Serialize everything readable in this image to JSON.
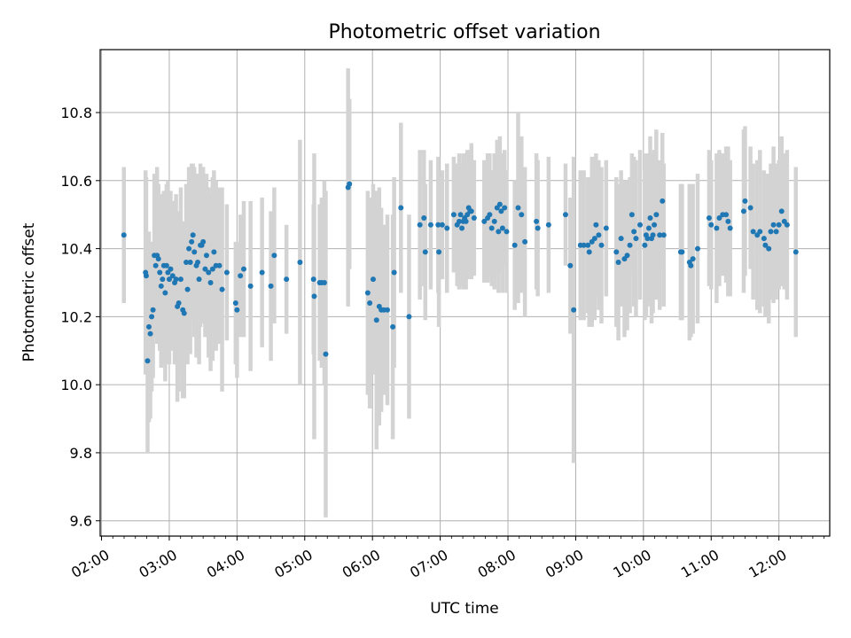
{
  "chart_data": {
    "type": "scatter",
    "title": "Photometric offset variation",
    "xlabel": "UTC time",
    "ylabel": "Photometric offset",
    "x_unit": "hours UTC",
    "xlim": [
      1.98,
      12.75
    ],
    "ylim": [
      9.555,
      10.985
    ],
    "xticks": [
      "02:00",
      "03:00",
      "04:00",
      "05:00",
      "06:00",
      "07:00",
      "08:00",
      "09:00",
      "10:00",
      "11:00",
      "12:00"
    ],
    "xtick_values": [
      2,
      3,
      4,
      5,
      6,
      7,
      8,
      9,
      10,
      11,
      12
    ],
    "yticks": [
      "9.6",
      "9.8",
      "10.0",
      "10.2",
      "10.4",
      "10.6",
      "10.8"
    ],
    "ytick_values": [
      9.6,
      9.8,
      10.0,
      10.2,
      10.4,
      10.6,
      10.8
    ],
    "grid": true,
    "point_color": "#1f77b4",
    "errorbar_color": "#d3d3d3",
    "points": [
      {
        "x": 2.33,
        "y": 10.44,
        "e": 0.2
      },
      {
        "x": 2.65,
        "y": 10.33,
        "e": 0.3
      },
      {
        "x": 2.66,
        "y": 10.32,
        "e": 0.29
      },
      {
        "x": 2.68,
        "y": 10.07,
        "e": 0.27
      },
      {
        "x": 2.7,
        "y": 10.17,
        "e": 0.28
      },
      {
        "x": 2.72,
        "y": 10.15,
        "e": 0.25
      },
      {
        "x": 2.74,
        "y": 10.2,
        "e": 0.22
      },
      {
        "x": 2.76,
        "y": 10.22,
        "e": 0.2
      },
      {
        "x": 2.78,
        "y": 10.38,
        "e": 0.24
      },
      {
        "x": 2.8,
        "y": 10.35,
        "e": 0.21
      },
      {
        "x": 2.82,
        "y": 10.38,
        "e": 0.26
      },
      {
        "x": 2.84,
        "y": 10.37,
        "e": 0.22
      },
      {
        "x": 2.86,
        "y": 10.33,
        "e": 0.23
      },
      {
        "x": 2.88,
        "y": 10.29,
        "e": 0.24
      },
      {
        "x": 2.9,
        "y": 10.31,
        "e": 0.25
      },
      {
        "x": 2.92,
        "y": 10.35,
        "e": 0.22
      },
      {
        "x": 2.94,
        "y": 10.27,
        "e": 0.26
      },
      {
        "x": 2.96,
        "y": 10.35,
        "e": 0.24
      },
      {
        "x": 2.98,
        "y": 10.33,
        "e": 0.27
      },
      {
        "x": 3.0,
        "y": 10.31,
        "e": 0.25
      },
      {
        "x": 3.02,
        "y": 10.34,
        "e": 0.23
      },
      {
        "x": 3.05,
        "y": 10.32,
        "e": 0.22
      },
      {
        "x": 3.08,
        "y": 10.3,
        "e": 0.24
      },
      {
        "x": 3.1,
        "y": 10.31,
        "e": 0.25
      },
      {
        "x": 3.12,
        "y": 10.23,
        "e": 0.28
      },
      {
        "x": 3.14,
        "y": 10.24,
        "e": 0.26
      },
      {
        "x": 3.17,
        "y": 10.31,
        "e": 0.27
      },
      {
        "x": 3.2,
        "y": 10.22,
        "e": 0.26
      },
      {
        "x": 3.22,
        "y": 10.21,
        "e": 0.25
      },
      {
        "x": 3.25,
        "y": 10.36,
        "e": 0.23
      },
      {
        "x": 3.27,
        "y": 10.28,
        "e": 0.22
      },
      {
        "x": 3.29,
        "y": 10.4,
        "e": 0.24
      },
      {
        "x": 3.31,
        "y": 10.36,
        "e": 0.27
      },
      {
        "x": 3.33,
        "y": 10.42,
        "e": 0.23
      },
      {
        "x": 3.35,
        "y": 10.44,
        "e": 0.21
      },
      {
        "x": 3.37,
        "y": 10.39,
        "e": 0.25
      },
      {
        "x": 3.4,
        "y": 10.35,
        "e": 0.27
      },
      {
        "x": 3.42,
        "y": 10.36,
        "e": 0.26
      },
      {
        "x": 3.44,
        "y": 10.31,
        "e": 0.25
      },
      {
        "x": 3.46,
        "y": 10.41,
        "e": 0.24
      },
      {
        "x": 3.48,
        "y": 10.41,
        "e": 0.23
      },
      {
        "x": 3.5,
        "y": 10.42,
        "e": 0.22
      },
      {
        "x": 3.53,
        "y": 10.34,
        "e": 0.2
      },
      {
        "x": 3.55,
        "y": 10.38,
        "e": 0.24
      },
      {
        "x": 3.58,
        "y": 10.33,
        "e": 0.25
      },
      {
        "x": 3.61,
        "y": 10.3,
        "e": 0.26
      },
      {
        "x": 3.64,
        "y": 10.34,
        "e": 0.27
      },
      {
        "x": 3.66,
        "y": 10.39,
        "e": 0.24
      },
      {
        "x": 3.69,
        "y": 10.35,
        "e": 0.25
      },
      {
        "x": 3.74,
        "y": 10.35,
        "e": 0.23
      },
      {
        "x": 3.78,
        "y": 10.28,
        "e": 0.3
      },
      {
        "x": 3.85,
        "y": 10.33,
        "e": 0.2
      },
      {
        "x": 3.98,
        "y": 10.24,
        "e": 0.18
      },
      {
        "x": 4.0,
        "y": 10.22,
        "e": 0.2
      },
      {
        "x": 4.05,
        "y": 10.32,
        "e": 0.18
      },
      {
        "x": 4.1,
        "y": 10.34,
        "e": 0.2
      },
      {
        "x": 4.2,
        "y": 10.29,
        "e": 0.25
      },
      {
        "x": 4.37,
        "y": 10.33,
        "e": 0.22
      },
      {
        "x": 4.5,
        "y": 10.29,
        "e": 0.22
      },
      {
        "x": 4.55,
        "y": 10.38,
        "e": 0.2
      },
      {
        "x": 4.73,
        "y": 10.31,
        "e": 0.16
      },
      {
        "x": 4.93,
        "y": 10.36,
        "e": 0.36
      },
      {
        "x": 5.13,
        "y": 10.31,
        "e": 0.22
      },
      {
        "x": 5.14,
        "y": 10.26,
        "e": 0.42
      },
      {
        "x": 5.22,
        "y": 10.3,
        "e": 0.23
      },
      {
        "x": 5.25,
        "y": 10.3,
        "e": 0.25
      },
      {
        "x": 5.29,
        "y": 10.3,
        "e": 0.3
      },
      {
        "x": 5.31,
        "y": 10.09,
        "e": 0.48
      },
      {
        "x": 5.64,
        "y": 10.58,
        "e": 0.35
      },
      {
        "x": 5.66,
        "y": 10.59,
        "e": 0.25
      },
      {
        "x": 5.93,
        "y": 10.27,
        "e": 0.3
      },
      {
        "x": 5.96,
        "y": 10.24,
        "e": 0.31
      },
      {
        "x": 6.01,
        "y": 10.31,
        "e": 0.28
      },
      {
        "x": 6.06,
        "y": 10.19,
        "e": 0.38
      },
      {
        "x": 6.1,
        "y": 10.23,
        "e": 0.35
      },
      {
        "x": 6.13,
        "y": 10.22,
        "e": 0.3
      },
      {
        "x": 6.17,
        "y": 10.22,
        "e": 0.25
      },
      {
        "x": 6.22,
        "y": 10.22,
        "e": 0.28
      },
      {
        "x": 6.3,
        "y": 10.17,
        "e": 0.33
      },
      {
        "x": 6.32,
        "y": 10.33,
        "e": 0.28
      },
      {
        "x": 6.42,
        "y": 10.52,
        "e": 0.25
      },
      {
        "x": 6.54,
        "y": 10.2,
        "e": 0.3
      },
      {
        "x": 6.7,
        "y": 10.47,
        "e": 0.22
      },
      {
        "x": 6.76,
        "y": 10.49,
        "e": 0.2
      },
      {
        "x": 6.78,
        "y": 10.39,
        "e": 0.2
      },
      {
        "x": 6.86,
        "y": 10.47,
        "e": 0.19
      },
      {
        "x": 6.97,
        "y": 10.47,
        "e": 0.2
      },
      {
        "x": 6.98,
        "y": 10.39,
        "e": 0.22
      },
      {
        "x": 7.03,
        "y": 10.47,
        "e": 0.16
      },
      {
        "x": 7.1,
        "y": 10.46,
        "e": 0.19
      },
      {
        "x": 7.2,
        "y": 10.5,
        "e": 0.17
      },
      {
        "x": 7.25,
        "y": 10.47,
        "e": 0.18
      },
      {
        "x": 7.28,
        "y": 10.48,
        "e": 0.2
      },
      {
        "x": 7.3,
        "y": 10.5,
        "e": 0.15
      },
      {
        "x": 7.32,
        "y": 10.46,
        "e": 0.17
      },
      {
        "x": 7.34,
        "y": 10.48,
        "e": 0.2
      },
      {
        "x": 7.36,
        "y": 10.49,
        "e": 0.18
      },
      {
        "x": 7.38,
        "y": 10.48,
        "e": 0.2
      },
      {
        "x": 7.4,
        "y": 10.5,
        "e": 0.19
      },
      {
        "x": 7.42,
        "y": 10.52,
        "e": 0.16
      },
      {
        "x": 7.44,
        "y": 10.51,
        "e": 0.18
      },
      {
        "x": 7.46,
        "y": 10.51,
        "e": 0.2
      },
      {
        "x": 7.5,
        "y": 10.49,
        "e": 0.17
      },
      {
        "x": 7.65,
        "y": 10.48,
        "e": 0.18
      },
      {
        "x": 7.7,
        "y": 10.49,
        "e": 0.19
      },
      {
        "x": 7.73,
        "y": 10.5,
        "e": 0.18
      },
      {
        "x": 7.76,
        "y": 10.46,
        "e": 0.17
      },
      {
        "x": 7.8,
        "y": 10.48,
        "e": 0.2
      },
      {
        "x": 7.84,
        "y": 10.52,
        "e": 0.2
      },
      {
        "x": 7.86,
        "y": 10.45,
        "e": 0.18
      },
      {
        "x": 7.88,
        "y": 10.53,
        "e": 0.2
      },
      {
        "x": 7.9,
        "y": 10.51,
        "e": 0.17
      },
      {
        "x": 7.92,
        "y": 10.46,
        "e": 0.19
      },
      {
        "x": 7.95,
        "y": 10.52,
        "e": 0.17
      },
      {
        "x": 7.98,
        "y": 10.45,
        "e": 0.18
      },
      {
        "x": 8.1,
        "y": 10.41,
        "e": 0.19
      },
      {
        "x": 8.15,
        "y": 10.52,
        "e": 0.28
      },
      {
        "x": 8.2,
        "y": 10.5,
        "e": 0.23
      },
      {
        "x": 8.25,
        "y": 10.42,
        "e": 0.22
      },
      {
        "x": 8.42,
        "y": 10.48,
        "e": 0.2
      },
      {
        "x": 8.44,
        "y": 10.46,
        "e": 0.2
      },
      {
        "x": 8.6,
        "y": 10.47,
        "e": 0.2
      },
      {
        "x": 8.85,
        "y": 10.5,
        "e": 0.15
      },
      {
        "x": 8.92,
        "y": 10.35,
        "e": 0.2
      },
      {
        "x": 8.97,
        "y": 10.22,
        "e": 0.45
      },
      {
        "x": 9.07,
        "y": 10.41,
        "e": 0.22
      },
      {
        "x": 9.12,
        "y": 10.41,
        "e": 0.22
      },
      {
        "x": 9.18,
        "y": 10.41,
        "e": 0.2
      },
      {
        "x": 9.2,
        "y": 10.39,
        "e": 0.22
      },
      {
        "x": 9.24,
        "y": 10.42,
        "e": 0.25
      },
      {
        "x": 9.28,
        "y": 10.43,
        "e": 0.24
      },
      {
        "x": 9.3,
        "y": 10.47,
        "e": 0.21
      },
      {
        "x": 9.34,
        "y": 10.44,
        "e": 0.22
      },
      {
        "x": 9.38,
        "y": 10.41,
        "e": 0.23
      },
      {
        "x": 9.45,
        "y": 10.46,
        "e": 0.2
      },
      {
        "x": 9.6,
        "y": 10.39,
        "e": 0.22
      },
      {
        "x": 9.63,
        "y": 10.36,
        "e": 0.23
      },
      {
        "x": 9.67,
        "y": 10.43,
        "e": 0.2
      },
      {
        "x": 9.72,
        "y": 10.37,
        "e": 0.23
      },
      {
        "x": 9.76,
        "y": 10.38,
        "e": 0.22
      },
      {
        "x": 9.8,
        "y": 10.41,
        "e": 0.2
      },
      {
        "x": 9.83,
        "y": 10.5,
        "e": 0.18
      },
      {
        "x": 9.86,
        "y": 10.45,
        "e": 0.22
      },
      {
        "x": 9.89,
        "y": 10.43,
        "e": 0.23
      },
      {
        "x": 9.95,
        "y": 10.47,
        "e": 0.22
      },
      {
        "x": 10.02,
        "y": 10.41,
        "e": 0.22
      },
      {
        "x": 10.04,
        "y": 10.44,
        "e": 0.24
      },
      {
        "x": 10.06,
        "y": 10.43,
        "e": 0.2
      },
      {
        "x": 10.08,
        "y": 10.46,
        "e": 0.22
      },
      {
        "x": 10.1,
        "y": 10.49,
        "e": 0.24
      },
      {
        "x": 10.12,
        "y": 10.43,
        "e": 0.25
      },
      {
        "x": 10.14,
        "y": 10.44,
        "e": 0.23
      },
      {
        "x": 10.16,
        "y": 10.47,
        "e": 0.22
      },
      {
        "x": 10.19,
        "y": 10.5,
        "e": 0.25
      },
      {
        "x": 10.24,
        "y": 10.44,
        "e": 0.22
      },
      {
        "x": 10.28,
        "y": 10.54,
        "e": 0.2
      },
      {
        "x": 10.3,
        "y": 10.44,
        "e": 0.21
      },
      {
        "x": 10.55,
        "y": 10.39,
        "e": 0.2
      },
      {
        "x": 10.57,
        "y": 10.39,
        "e": 0.2
      },
      {
        "x": 10.68,
        "y": 10.36,
        "e": 0.23
      },
      {
        "x": 10.7,
        "y": 10.35,
        "e": 0.21
      },
      {
        "x": 10.73,
        "y": 10.37,
        "e": 0.22
      },
      {
        "x": 10.8,
        "y": 10.4,
        "e": 0.22
      },
      {
        "x": 10.97,
        "y": 10.49,
        "e": 0.2
      },
      {
        "x": 11.0,
        "y": 10.47,
        "e": 0.19
      },
      {
        "x": 11.08,
        "y": 10.46,
        "e": 0.22
      },
      {
        "x": 11.12,
        "y": 10.49,
        "e": 0.2
      },
      {
        "x": 11.17,
        "y": 10.5,
        "e": 0.18
      },
      {
        "x": 11.22,
        "y": 10.5,
        "e": 0.2
      },
      {
        "x": 11.25,
        "y": 10.48,
        "e": 0.22
      },
      {
        "x": 11.28,
        "y": 10.46,
        "e": 0.2
      },
      {
        "x": 11.48,
        "y": 10.51,
        "e": 0.24
      },
      {
        "x": 11.5,
        "y": 10.54,
        "e": 0.22
      },
      {
        "x": 11.58,
        "y": 10.52,
        "e": 0.18
      },
      {
        "x": 11.62,
        "y": 10.45,
        "e": 0.2
      },
      {
        "x": 11.68,
        "y": 10.44,
        "e": 0.22
      },
      {
        "x": 11.72,
        "y": 10.45,
        "e": 0.24
      },
      {
        "x": 11.78,
        "y": 10.43,
        "e": 0.2
      },
      {
        "x": 11.8,
        "y": 10.41,
        "e": 0.21
      },
      {
        "x": 11.85,
        "y": 10.4,
        "e": 0.22
      },
      {
        "x": 11.88,
        "y": 10.45,
        "e": 0.2
      },
      {
        "x": 11.92,
        "y": 10.47,
        "e": 0.23
      },
      {
        "x": 11.96,
        "y": 10.45,
        "e": 0.2
      },
      {
        "x": 12.0,
        "y": 10.47,
        "e": 0.19
      },
      {
        "x": 12.04,
        "y": 10.51,
        "e": 0.22
      },
      {
        "x": 12.08,
        "y": 10.48,
        "e": 0.2
      },
      {
        "x": 12.12,
        "y": 10.47,
        "e": 0.22
      },
      {
        "x": 12.25,
        "y": 10.39,
        "e": 0.25
      }
    ]
  }
}
